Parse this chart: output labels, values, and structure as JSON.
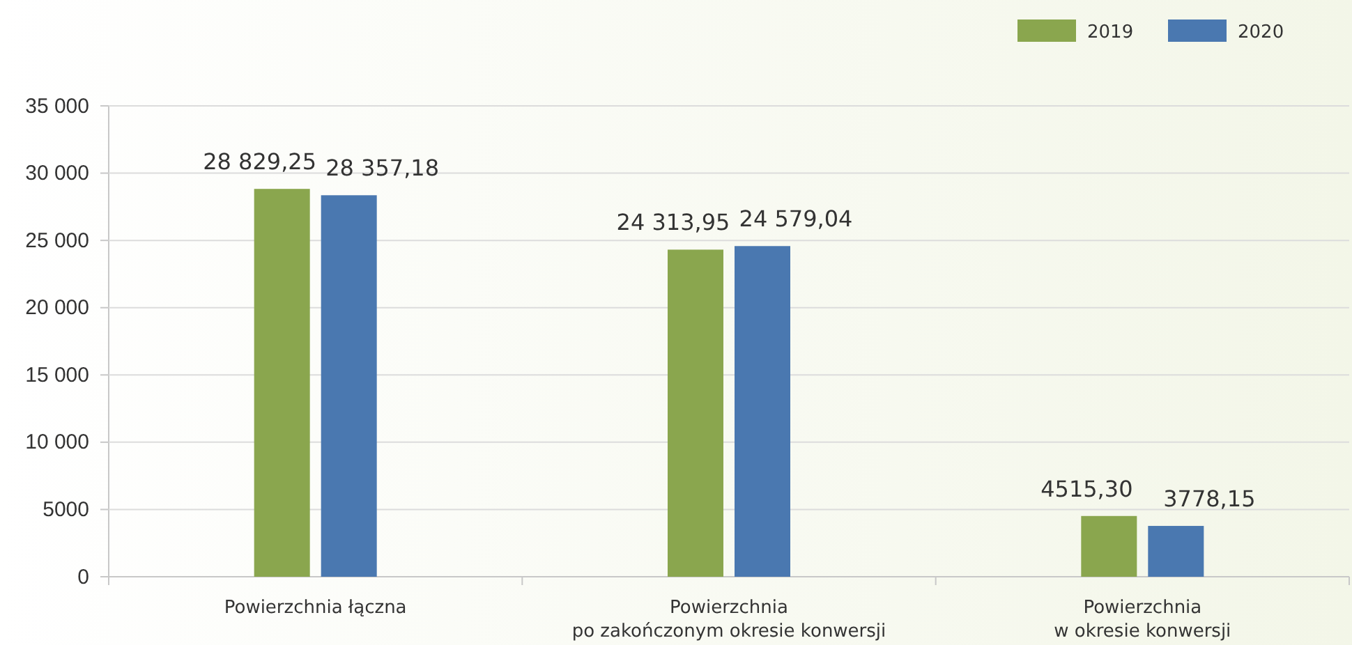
{
  "chart_data": {
    "type": "bar",
    "categories": [
      "Powierzchnia łączna",
      "Powierzchnia\npo zakończonym okresie konwersji",
      "Powierzchnia\nw okresie konwersji"
    ],
    "series": [
      {
        "name": "2019",
        "color": "#8aa64e",
        "values": [
          28829.25,
          24313.95,
          4515.3
        ],
        "value_labels": [
          "28 829,25",
          "24 313,95",
          "4515,30"
        ]
      },
      {
        "name": "2020",
        "color": "#4a78b0",
        "values": [
          28357.18,
          24579.04,
          3778.15
        ],
        "value_labels": [
          "28 357,18",
          "24 579,04",
          "3778,15"
        ]
      }
    ],
    "ylim": [
      0,
      35000
    ],
    "yticks": [
      0,
      5000,
      {
        "value": 10000,
        "label": "10 000"
      },
      {
        "value": 15000,
        "label": "15 000"
      },
      {
        "value": 20000,
        "label": "20 000"
      },
      {
        "value": 25000,
        "label": "25 000"
      },
      {
        "value": 30000,
        "label": "30 000"
      },
      {
        "value": 35000,
        "label": "35 000"
      }
    ],
    "grid": "y",
    "legend": "top right"
  }
}
